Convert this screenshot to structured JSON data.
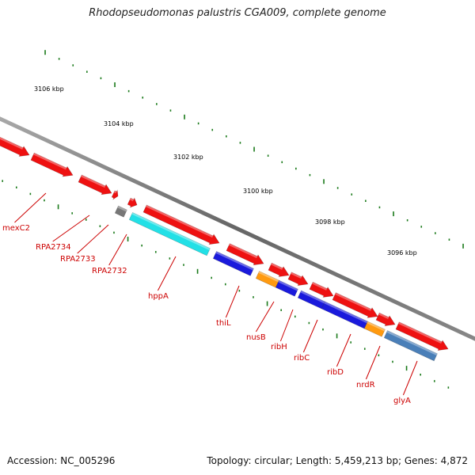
{
  "title": "Rhodopseudomonas palustris CGA009, complete genome",
  "footer": {
    "accession": "Accession: NC_005296",
    "summary": "Topology: circular; Length: 5,459,213 bp; Genes: 4,872"
  },
  "scale": {
    "labels": [
      "3106 kbp",
      "3104 kbp",
      "3102 kbp",
      "3100 kbp",
      "3098 kbp",
      "3096 kbp"
    ]
  },
  "colors": {
    "red": "#ee1111",
    "blue": "#1a1adc",
    "cyan": "#22e0e6",
    "orange": "#ff9a10",
    "steel": "#4a7fb8",
    "gray": "#777777",
    "label": "#cc0000",
    "tick": "#1a7a1a"
  },
  "gene_labels": [
    "mexC2",
    "RPA2734",
    "RPA2733",
    "RPA2732",
    "hppA",
    "thiL",
    "nusB",
    "ribH",
    "ribC",
    "ribD",
    "nrdR",
    "glyA"
  ]
}
